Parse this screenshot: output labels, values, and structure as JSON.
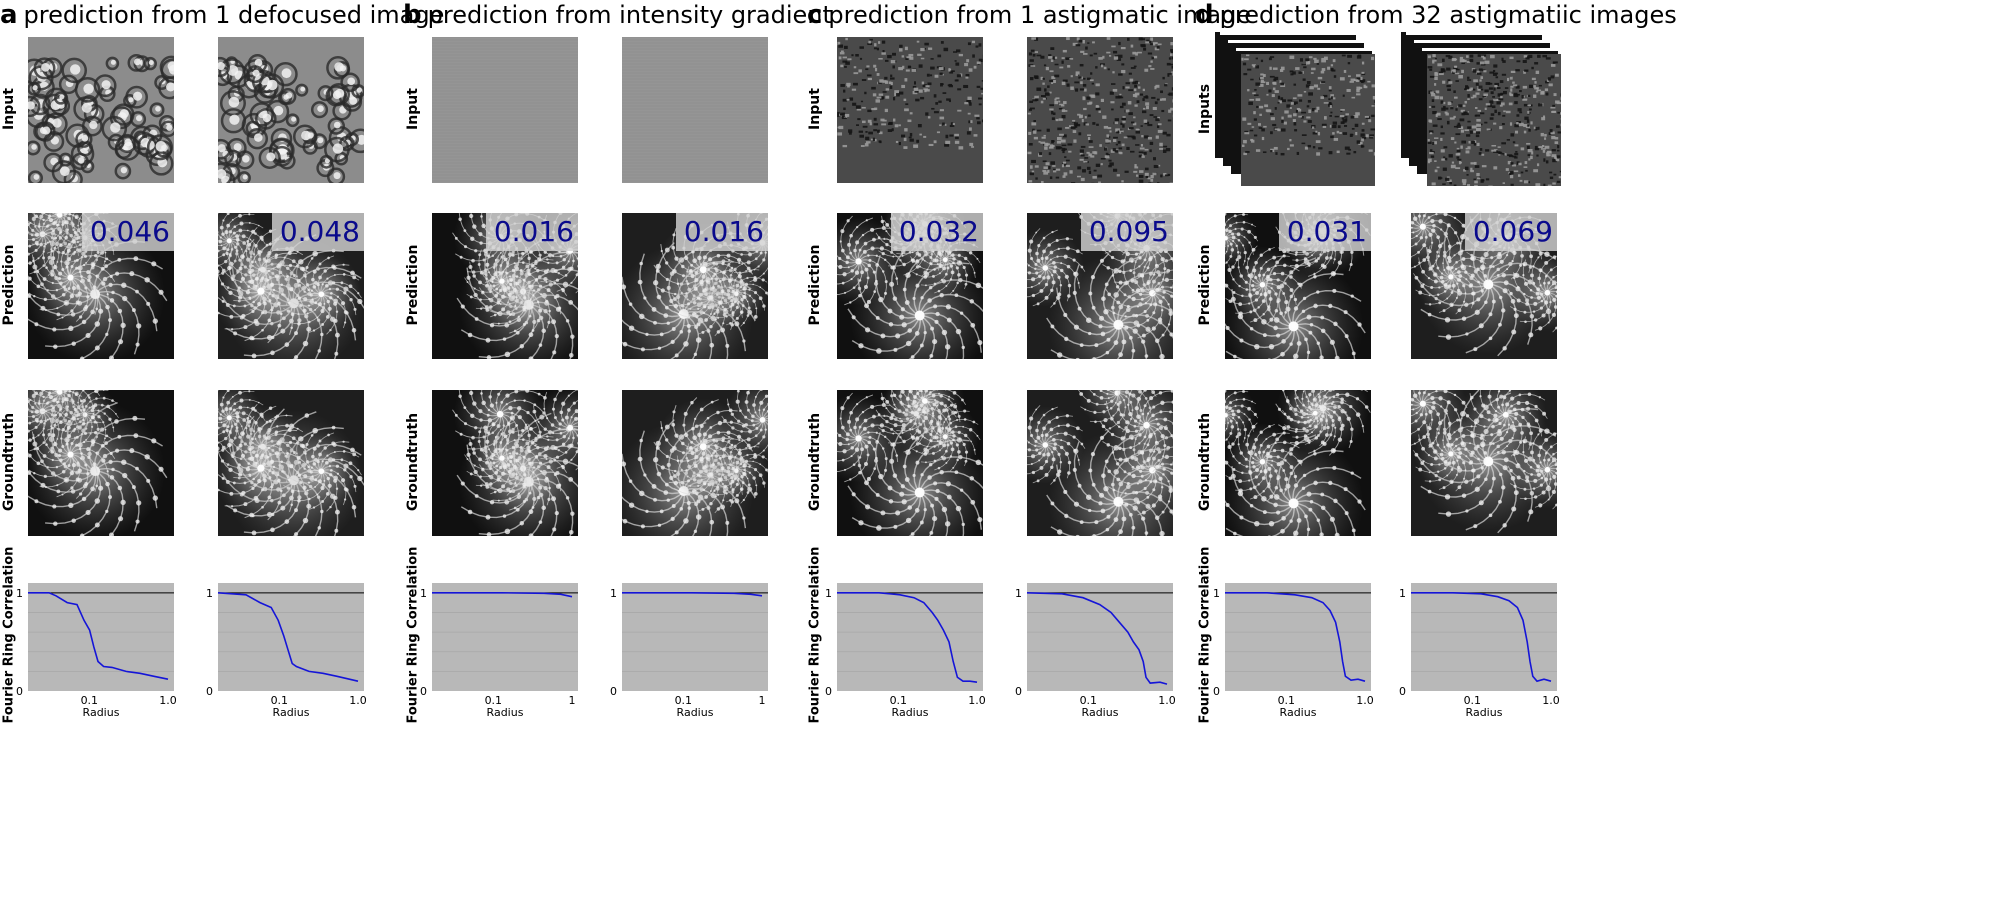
{
  "panels": [
    {
      "letter": "a",
      "title": "prediction from 1 defocused image",
      "input_label": "Input",
      "scores": [
        "0.046",
        "0.048"
      ],
      "input_kind": "defocus",
      "frc": [
        [
          [
            0,
            1
          ],
          [
            0.15,
            1
          ],
          [
            0.2,
            0.97
          ],
          [
            0.28,
            0.9
          ],
          [
            0.35,
            0.88
          ],
          [
            0.4,
            0.72
          ],
          [
            0.44,
            0.62
          ],
          [
            0.47,
            0.45
          ],
          [
            0.5,
            0.3
          ],
          [
            0.54,
            0.25
          ],
          [
            0.6,
            0.24
          ],
          [
            0.7,
            0.2
          ],
          [
            0.8,
            0.18
          ],
          [
            0.9,
            0.15
          ],
          [
            1,
            0.12
          ]
        ],
        [
          [
            0,
            1
          ],
          [
            0.2,
            0.98
          ],
          [
            0.3,
            0.9
          ],
          [
            0.38,
            0.85
          ],
          [
            0.43,
            0.72
          ],
          [
            0.47,
            0.56
          ],
          [
            0.5,
            0.42
          ],
          [
            0.53,
            0.28
          ],
          [
            0.56,
            0.25
          ],
          [
            0.65,
            0.2
          ],
          [
            0.75,
            0.18
          ],
          [
            0.85,
            0.15
          ],
          [
            1,
            0.1
          ]
        ]
      ]
    },
    {
      "letter": "b",
      "title": "prediction from intensity gradient",
      "input_label": "Input",
      "scores": [
        "0.016",
        "0.016"
      ],
      "input_kind": "flat",
      "frc": [
        [
          [
            0,
            1
          ],
          [
            0.5,
            1
          ],
          [
            0.8,
            0.995
          ],
          [
            0.92,
            0.985
          ],
          [
            1,
            0.96
          ]
        ],
        [
          [
            0,
            1
          ],
          [
            0.5,
            1
          ],
          [
            0.8,
            0.995
          ],
          [
            0.92,
            0.985
          ],
          [
            1,
            0.97
          ]
        ]
      ]
    },
    {
      "letter": "c",
      "title": "prediction from 1 astigmatic image",
      "input_label": "Input",
      "scores": [
        "0.032",
        "0.095"
      ],
      "input_kind": "astig",
      "frc": [
        [
          [
            0,
            1
          ],
          [
            0.3,
            1
          ],
          [
            0.45,
            0.98
          ],
          [
            0.55,
            0.95
          ],
          [
            0.62,
            0.9
          ],
          [
            0.68,
            0.8
          ],
          [
            0.72,
            0.72
          ],
          [
            0.76,
            0.62
          ],
          [
            0.8,
            0.5
          ],
          [
            0.83,
            0.3
          ],
          [
            0.86,
            0.14
          ],
          [
            0.9,
            0.1
          ],
          [
            0.95,
            0.1
          ],
          [
            1,
            0.09
          ]
        ],
        [
          [
            0,
            1
          ],
          [
            0.25,
            0.99
          ],
          [
            0.4,
            0.95
          ],
          [
            0.52,
            0.88
          ],
          [
            0.6,
            0.8
          ],
          [
            0.66,
            0.7
          ],
          [
            0.72,
            0.6
          ],
          [
            0.76,
            0.5
          ],
          [
            0.8,
            0.42
          ],
          [
            0.83,
            0.3
          ],
          [
            0.85,
            0.14
          ],
          [
            0.88,
            0.08
          ],
          [
            0.95,
            0.09
          ],
          [
            1,
            0.07
          ]
        ]
      ]
    },
    {
      "letter": "d",
      "title": "prediction from 32 astigmatiic images",
      "input_label": "Inputs",
      "scores": [
        "0.031",
        "0.069"
      ],
      "input_kind": "stack",
      "frc": [
        [
          [
            0,
            1
          ],
          [
            0.3,
            1
          ],
          [
            0.5,
            0.98
          ],
          [
            0.62,
            0.95
          ],
          [
            0.7,
            0.9
          ],
          [
            0.75,
            0.82
          ],
          [
            0.79,
            0.7
          ],
          [
            0.82,
            0.5
          ],
          [
            0.84,
            0.3
          ],
          [
            0.86,
            0.15
          ],
          [
            0.9,
            0.11
          ],
          [
            0.95,
            0.12
          ],
          [
            1,
            0.1
          ]
        ],
        [
          [
            0,
            1
          ],
          [
            0.3,
            1
          ],
          [
            0.5,
            0.99
          ],
          [
            0.62,
            0.96
          ],
          [
            0.7,
            0.92
          ],
          [
            0.76,
            0.85
          ],
          [
            0.8,
            0.72
          ],
          [
            0.83,
            0.5
          ],
          [
            0.85,
            0.3
          ],
          [
            0.87,
            0.15
          ],
          [
            0.9,
            0.1
          ],
          [
            0.95,
            0.12
          ],
          [
            1,
            0.1
          ]
        ]
      ]
    }
  ],
  "row_labels": {
    "prediction": "Prediction",
    "groundtruth": "Groundtruth",
    "frc": "Fourier Ring Correlation"
  },
  "frc_axis": {
    "xlabel": "Radius",
    "x_ticks": [
      "0.1",
      "1.0"
    ],
    "x_ticks_b": [
      "0.1",
      "1"
    ],
    "y_ticks": [
      "0",
      "1"
    ],
    "ylim": [
      0,
      1.1
    ]
  },
  "colors": {
    "frc_line": "#1515d8",
    "frc_bg": "#b8b8b8",
    "score_text": "#0a0a8c"
  }
}
